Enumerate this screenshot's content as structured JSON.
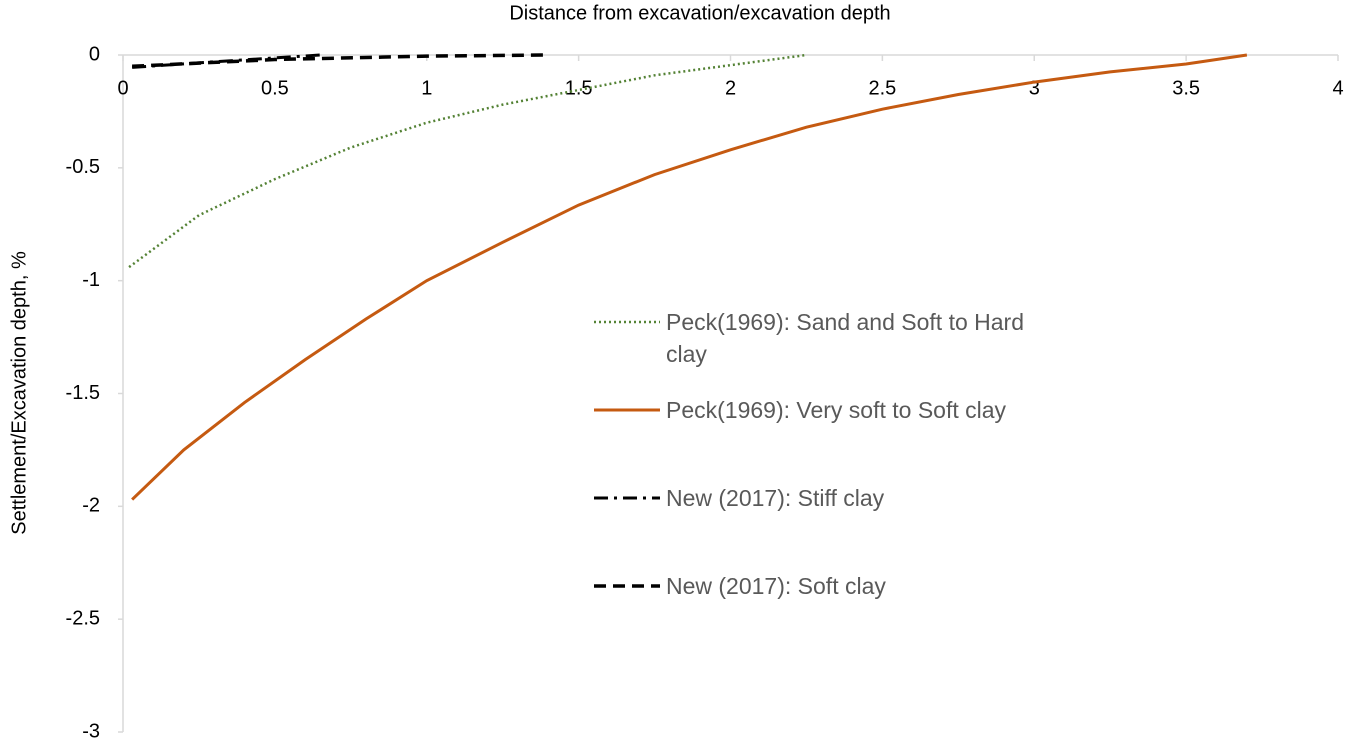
{
  "chart_data": {
    "type": "line",
    "x_title": "Distance from excavation/excavation depth",
    "y_title": "Settlement/Excavation depth, %",
    "xlim": [
      0,
      4
    ],
    "xticks": [
      0,
      0.5,
      1,
      1.5,
      2,
      2.5,
      3,
      3.5,
      4
    ],
    "ylim": [
      -3,
      0
    ],
    "yticks": [
      0,
      -0.5,
      -1,
      -1.5,
      -2,
      -2.5,
      -3
    ],
    "grid": false,
    "legend": "center",
    "series": [
      {
        "name": "Peck(1969): Sand and Soft to Hard clay",
        "color": "#548235",
        "style": "dotted",
        "x": [
          0.02,
          0.25,
          0.5,
          0.75,
          1,
          1.25,
          1.5,
          1.75,
          2,
          2.25
        ],
        "values": [
          -0.94,
          -0.71,
          -0.55,
          -0.41,
          -0.3,
          -0.22,
          -0.155,
          -0.09,
          -0.045,
          0
        ]
      },
      {
        "name": "Peck(1969): Very soft to Soft clay",
        "color": "#c55a11",
        "style": "solid",
        "x": [
          0.03,
          0.2,
          0.4,
          0.6,
          0.8,
          1,
          1.25,
          1.5,
          1.75,
          2,
          2.25,
          2.5,
          2.75,
          3,
          3.25,
          3.5,
          3.7
        ],
        "values": [
          -1.97,
          -1.75,
          -1.54,
          -1.35,
          -1.17,
          -1.0,
          -0.83,
          -0.665,
          -0.53,
          -0.42,
          -0.32,
          -0.24,
          -0.175,
          -0.12,
          -0.075,
          -0.04,
          0
        ]
      },
      {
        "name": "New (2017): Stiff clay",
        "color": "#000000",
        "style": "dashdot",
        "x": [
          0.03,
          0.3,
          0.65
        ],
        "values": [
          -0.055,
          -0.03,
          0
        ]
      },
      {
        "name": "New (2017): Soft clay",
        "color": "#000000",
        "style": "dashed",
        "x": [
          0.03,
          0.5,
          1,
          1.4
        ],
        "values": [
          -0.05,
          -0.02,
          -0.005,
          0
        ]
      }
    ]
  }
}
